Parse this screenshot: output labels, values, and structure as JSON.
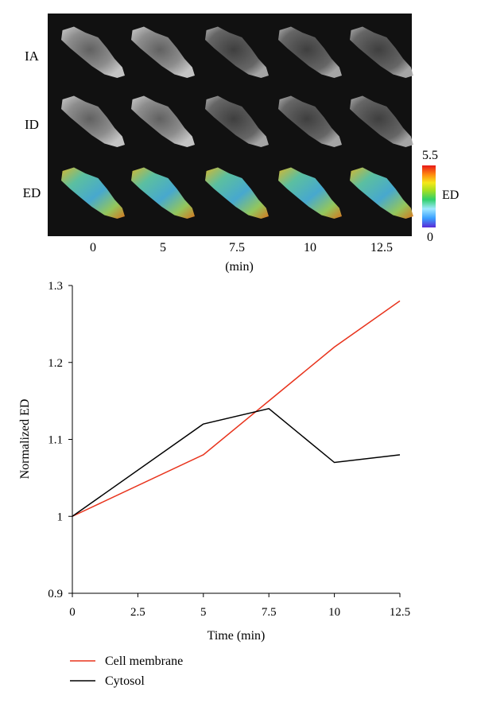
{
  "microscopy_panel": {
    "row_labels": [
      "IA",
      "ID",
      "ED"
    ],
    "time_labels": [
      "0",
      "5",
      "7.5",
      "10",
      "12.5"
    ],
    "time_unit_label": "(min)",
    "colorbar": {
      "title": "ED",
      "max_label": "5.5",
      "min_label": "0"
    }
  },
  "chart_data": {
    "type": "line",
    "xlabel": "Time (min)",
    "ylabel": "Normalized ED",
    "xlim": [
      0,
      12.5
    ],
    "ylim": [
      0.9,
      1.3
    ],
    "x_ticks": [
      "0",
      "2.5",
      "5",
      "7.5",
      "10",
      "12.5"
    ],
    "y_ticks": [
      "0.9",
      "1",
      "1.1",
      "1.2",
      "1.3"
    ],
    "grid": false,
    "legend_position": "bottom-left, below chart",
    "series": [
      {
        "name": "Cell membrane",
        "color": "#e8331c",
        "x": [
          0,
          5,
          7.5,
          10,
          12.5
        ],
        "y": [
          1.0,
          1.08,
          1.15,
          1.22,
          1.28
        ]
      },
      {
        "name": "Cytosol",
        "color": "#000000",
        "x": [
          0,
          5,
          7.5,
          10,
          12.5
        ],
        "y": [
          1.0,
          1.12,
          1.14,
          1.07,
          1.08
        ]
      }
    ]
  }
}
